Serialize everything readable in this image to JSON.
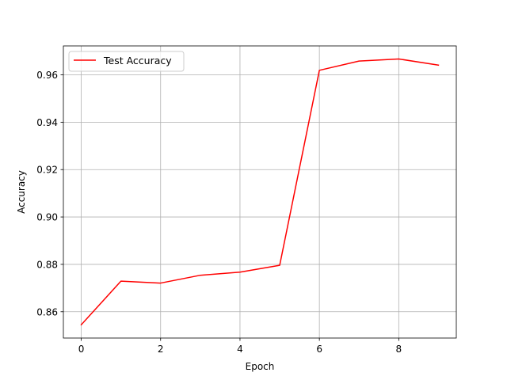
{
  "chart_data": {
    "type": "line",
    "title": "",
    "xlabel": "Epoch",
    "ylabel": "Accuracy",
    "x": [
      0,
      1,
      2,
      3,
      4,
      5,
      6,
      7,
      8,
      9
    ],
    "series": [
      {
        "name": "Test Accuracy",
        "color": "#ff0000",
        "values": [
          0.8545,
          0.8729,
          0.8721,
          0.8754,
          0.8767,
          0.8796,
          0.9619,
          0.9658,
          0.9667,
          0.9641
        ]
      }
    ],
    "xlim": [
      -0.45,
      9.45
    ],
    "ylim": [
      0.8489,
      0.9722
    ],
    "xticks": [
      0,
      2,
      4,
      6,
      8
    ],
    "xtick_labels": [
      "0",
      "2",
      "4",
      "6",
      "8"
    ],
    "yticks": [
      0.86,
      0.88,
      0.9,
      0.92,
      0.94,
      0.96
    ],
    "ytick_labels": [
      "0.86",
      "0.88",
      "0.90",
      "0.92",
      "0.94",
      "0.96"
    ],
    "grid": true,
    "legend": "upper-left"
  }
}
